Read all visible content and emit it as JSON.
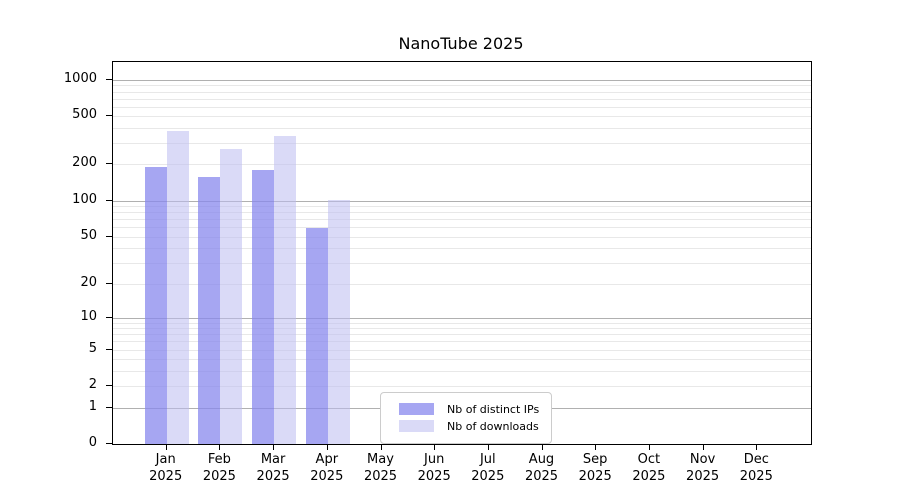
{
  "chart_data": {
    "type": "bar",
    "title": "NanoTube 2025",
    "categories": [
      "Jan 2025",
      "Feb 2025",
      "Mar 2025",
      "Apr 2025",
      "May 2025",
      "Jun 2025",
      "Jul 2025",
      "Aug 2025",
      "Sep 2025",
      "Oct 2025",
      "Nov 2025",
      "Dec 2025"
    ],
    "x_tick_months": [
      "Jan",
      "Feb",
      "Mar",
      "Apr",
      "May",
      "Jun",
      "Jul",
      "Aug",
      "Sep",
      "Oct",
      "Nov",
      "Dec"
    ],
    "x_tick_year": "2025",
    "series": [
      {
        "name": "Nb of distinct IPs",
        "color": "#8888ee",
        "alpha": 0.75,
        "values": [
          190,
          156,
          181,
          59,
          0,
          0,
          0,
          0,
          0,
          0,
          0,
          0
        ]
      },
      {
        "name": "Nb of downloads",
        "color": "#bbbbf0",
        "alpha": 0.55,
        "values": [
          375,
          270,
          346,
          102,
          0,
          0,
          0,
          0,
          0,
          0,
          0,
          0
        ]
      }
    ],
    "y_axis": {
      "scale": "log1p",
      "min": 0,
      "max": 1400,
      "ticks": [
        1000,
        500,
        200,
        100,
        50,
        20,
        10,
        5,
        2,
        1,
        0
      ],
      "major_gridlines": [
        1,
        10,
        100,
        1000
      ]
    },
    "legend": {
      "position": "lower center"
    },
    "grid": "horizontal",
    "colors": {
      "spine": "#000000",
      "grid_major": "#b0b0b0",
      "grid_minor": "#e8e8e8",
      "legend_border": "#cccccc",
      "background": "#ffffff"
    }
  }
}
